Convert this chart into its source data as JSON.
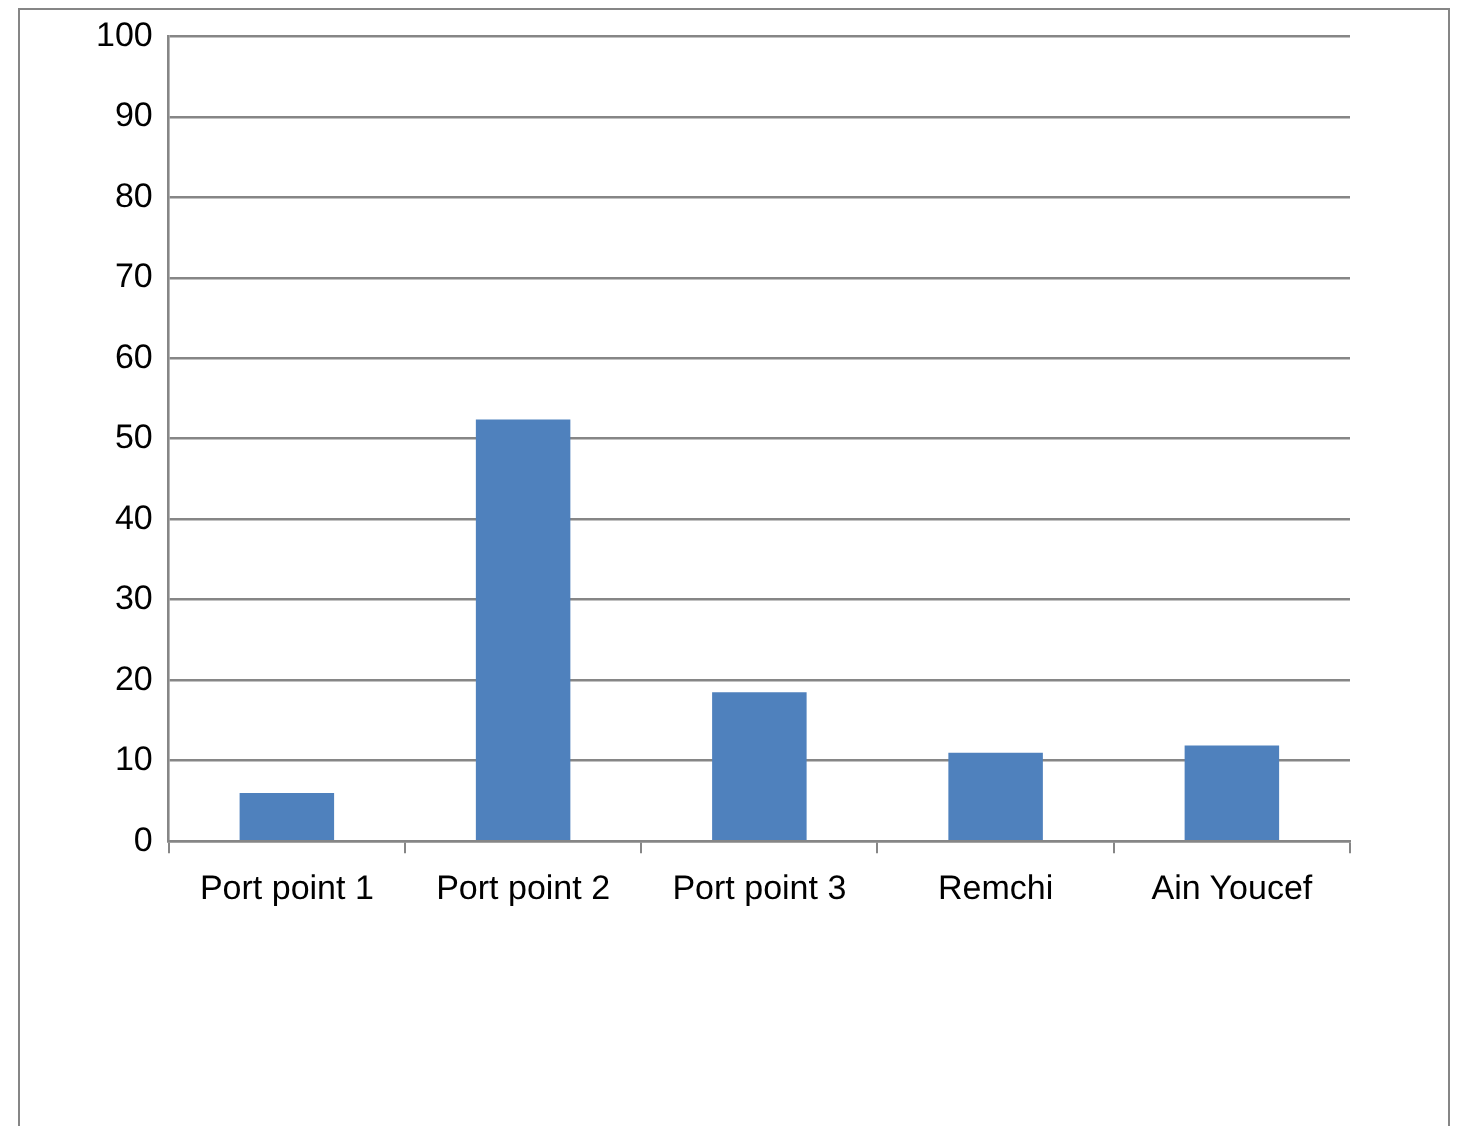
{
  "chart_data": {
    "type": "bar",
    "categories": [
      "Port point 1",
      "Port point 2",
      "Port point 3",
      "Remchi",
      "Ain Youcef"
    ],
    "values": [
      6.0,
      52.4,
      18.5,
      11.0,
      11.9
    ],
    "color": "#4f81bd",
    "ylim": [
      0,
      100
    ],
    "yticks": [
      0,
      10,
      20,
      30,
      40,
      50,
      60,
      70,
      80,
      90,
      100
    ],
    "grid": "y",
    "legend": false
  }
}
